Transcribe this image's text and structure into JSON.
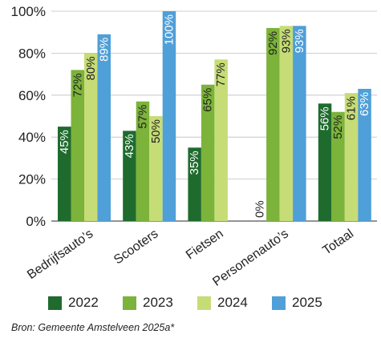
{
  "chart_data": {
    "type": "bar",
    "categories": [
      "Bedrijfsauto’s",
      "Scooters",
      "Fietsen",
      "Personenauto’s",
      "Totaal"
    ],
    "series": [
      {
        "name": "2022",
        "color": "#1f6b2e",
        "values": [
          45,
          43,
          35,
          0,
          56
        ],
        "labels": [
          "45%",
          "43%",
          "35%",
          "0%",
          "56%"
        ]
      },
      {
        "name": "2023",
        "color": "#7cb33a",
        "values": [
          72,
          57,
          65,
          92,
          52
        ],
        "labels": [
          "72%",
          "57%",
          "65%",
          "92%",
          "52%"
        ]
      },
      {
        "name": "2024",
        "color": "#c6dc76",
        "values": [
          80,
          50,
          77,
          93,
          61
        ],
        "labels": [
          "80%",
          "50%",
          "77%",
          "93%",
          "61%"
        ]
      },
      {
        "name": "2025",
        "color": "#4f9fd8",
        "values": [
          89,
          100,
          null,
          93,
          63
        ],
        "labels": [
          "89%",
          "100%",
          null,
          "93%",
          "63%"
        ]
      }
    ],
    "ylim": [
      0,
      100
    ],
    "yticks": [
      0,
      20,
      40,
      60,
      80,
      100
    ],
    "ytick_labels": [
      "0%",
      "20%",
      "40%",
      "60%",
      "80%",
      "100%"
    ],
    "legend_position": "bottom",
    "grid": true
  },
  "source": "Bron: Gemeente Amstelveen 2025a*"
}
